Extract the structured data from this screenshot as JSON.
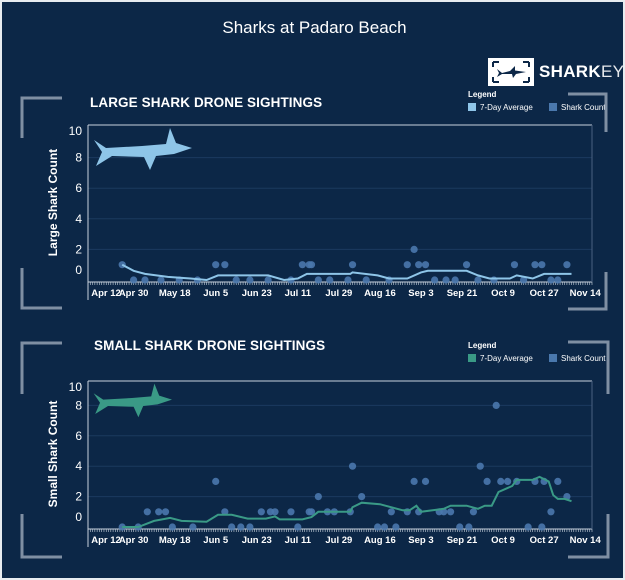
{
  "title": "Sharks at Padaro Beach",
  "logo": {
    "bold": "SHARK",
    "light": "EYE",
    "icon": "shark-eye-logo"
  },
  "colors": {
    "background": "#0c2747",
    "bracket": "#7f8fa3",
    "large_avg": "#8ec5e8",
    "small_avg": "#3a9a86",
    "dot": "#4a78ad"
  },
  "chart_data": [
    {
      "type": "line",
      "title": "LARGE SHARK DRONE SIGHTINGS",
      "ylabel": "Large Shark Count",
      "xlabel": "",
      "ylim": [
        0,
        10
      ],
      "yticks": [
        0,
        2,
        4,
        6,
        8,
        10
      ],
      "xticks": [
        "Apr 12",
        "Apr 30",
        "May 18",
        "Jun 5",
        "Jun 23",
        "Jul 11",
        "Jul 29",
        "Aug 16",
        "Sep 3",
        "Sep 21",
        "Oct 9",
        "Oct 27",
        "Nov 14"
      ],
      "grid": true,
      "legend": {
        "title": "Legend",
        "position": "top-right",
        "items": [
          "7-Day Average",
          "Shark Count"
        ]
      },
      "series": [
        {
          "name": "7-Day Average",
          "type": "line",
          "points": [
            [
              "04-25",
              1
            ],
            [
              "04-30",
              0.6
            ],
            [
              "05-05",
              0.4
            ],
            [
              "05-15",
              0.2
            ],
            [
              "05-25",
              0.1
            ],
            [
              "06-01",
              0
            ],
            [
              "06-06",
              0.3
            ],
            [
              "06-20",
              0.3
            ],
            [
              "06-28",
              0.3
            ],
            [
              "07-05",
              0
            ],
            [
              "07-11",
              0.1
            ],
            [
              "07-15",
              0.4
            ],
            [
              "08-03",
              0.4
            ],
            [
              "08-04",
              0.5
            ],
            [
              "08-15",
              0.3
            ],
            [
              "08-20",
              0.1
            ],
            [
              "08-28",
              0.1
            ],
            [
              "09-03",
              0.5
            ],
            [
              "09-06",
              0.6
            ],
            [
              "09-23",
              0.6
            ],
            [
              "09-28",
              0.3
            ],
            [
              "10-03",
              0.1
            ],
            [
              "10-12",
              0.1
            ],
            [
              "10-15",
              0.3
            ],
            [
              "10-22",
              0.1
            ],
            [
              "10-27",
              0.4
            ],
            [
              "11-08",
              0.4
            ]
          ]
        },
        {
          "name": "Shark Count",
          "type": "scatter",
          "points": [
            [
              "04-25",
              1
            ],
            [
              "06-05",
              1
            ],
            [
              "06-09",
              1
            ],
            [
              "07-13",
              1
            ],
            [
              "07-16",
              1
            ],
            [
              "07-17",
              1
            ],
            [
              "08-04",
              1
            ],
            [
              "08-28",
              1
            ],
            [
              "08-31",
              2
            ],
            [
              "09-02",
              1
            ],
            [
              "09-05",
              1
            ],
            [
              "09-23",
              1
            ],
            [
              "10-14",
              1
            ],
            [
              "10-23",
              1
            ],
            [
              "10-26",
              1
            ],
            [
              "11-06",
              1
            ],
            [
              "04-30",
              0
            ],
            [
              "05-05",
              0
            ],
            [
              "05-12",
              0
            ],
            [
              "05-20",
              0
            ],
            [
              "05-28",
              0
            ],
            [
              "06-14",
              0
            ],
            [
              "06-20",
              0
            ],
            [
              "06-28",
              0
            ],
            [
              "07-08",
              0
            ],
            [
              "07-20",
              0
            ],
            [
              "07-25",
              0
            ],
            [
              "08-02",
              0
            ],
            [
              "08-10",
              0
            ],
            [
              "08-20",
              0
            ],
            [
              "09-09",
              0
            ],
            [
              "09-14",
              0
            ],
            [
              "09-18",
              0
            ],
            [
              "09-28",
              0
            ],
            [
              "10-05",
              0
            ],
            [
              "10-18",
              0
            ],
            [
              "10-30",
              0
            ],
            [
              "11-02",
              0
            ]
          ]
        }
      ]
    },
    {
      "type": "line",
      "title": "SMALL SHARK DRONE SIGHTINGS",
      "ylabel": "Small Shark Count",
      "xlabel": "",
      "ylim": [
        0,
        10
      ],
      "yticks": [
        0,
        2,
        4,
        6,
        8,
        10
      ],
      "xticks": [
        "Apr 12",
        "Apr 30",
        "May 18",
        "Jun 5",
        "Jun 23",
        "Jul 11",
        "Jul 29",
        "Aug 16",
        "Sep 3",
        "Sep 21",
        "Oct 9",
        "Oct 27",
        "Nov 14"
      ],
      "grid": true,
      "legend": {
        "title": "Legend",
        "position": "top-right",
        "items": [
          "7-Day Average",
          "Shark Count"
        ]
      },
      "series": [
        {
          "name": "7-Day Average",
          "type": "line",
          "points": [
            [
              "04-25",
              0
            ],
            [
              "05-02",
              0
            ],
            [
              "05-09",
              0.4
            ],
            [
              "05-16",
              0.6
            ],
            [
              "05-21",
              0.4
            ],
            [
              "06-01",
              0.35
            ],
            [
              "06-06",
              0.8
            ],
            [
              "06-12",
              0.8
            ],
            [
              "06-19",
              0.55
            ],
            [
              "06-27",
              0.55
            ],
            [
              "07-01",
              0.7
            ],
            [
              "07-03",
              0.5
            ],
            [
              "07-13",
              0.5
            ],
            [
              "07-17",
              0.65
            ],
            [
              "07-20",
              1
            ],
            [
              "08-03",
              1
            ],
            [
              "08-04",
              1.3
            ],
            [
              "08-08",
              1.6
            ],
            [
              "08-16",
              1.5
            ],
            [
              "08-26",
              1.1
            ],
            [
              "08-29",
              1.1
            ],
            [
              "09-01",
              1.4
            ],
            [
              "09-03",
              1.0
            ],
            [
              "09-13",
              1.2
            ],
            [
              "09-16",
              1.4
            ],
            [
              "09-23",
              1.4
            ],
            [
              "09-28",
              1.2
            ],
            [
              "10-01",
              1.4
            ],
            [
              "10-04",
              1.4
            ],
            [
              "10-07",
              2.3
            ],
            [
              "10-13",
              2.7
            ],
            [
              "10-15",
              3.1
            ],
            [
              "10-22",
              3.1
            ],
            [
              "10-25",
              3.3
            ],
            [
              "10-29",
              3.0
            ],
            [
              "10-31",
              2.1
            ],
            [
              "11-02",
              1.85
            ],
            [
              "11-05",
              1.85
            ],
            [
              "11-08",
              1.7
            ]
          ]
        },
        {
          "name": "Shark Count",
          "type": "scatter",
          "points": [
            [
              "05-06",
              1
            ],
            [
              "05-11",
              1
            ],
            [
              "05-14",
              1
            ],
            [
              "06-05",
              3
            ],
            [
              "06-09",
              1
            ],
            [
              "06-25",
              1
            ],
            [
              "06-29",
              1
            ],
            [
              "07-01",
              1
            ],
            [
              "07-08",
              1
            ],
            [
              "07-16",
              1
            ],
            [
              "07-17",
              1
            ],
            [
              "07-20",
              2
            ],
            [
              "07-24",
              1
            ],
            [
              "07-27",
              1
            ],
            [
              "08-03",
              1
            ],
            [
              "08-04",
              4
            ],
            [
              "08-08",
              2
            ],
            [
              "08-21",
              1
            ],
            [
              "08-28",
              1
            ],
            [
              "08-31",
              3
            ],
            [
              "09-02",
              1
            ],
            [
              "09-05",
              3
            ],
            [
              "09-11",
              1
            ],
            [
              "09-13",
              1
            ],
            [
              "09-16",
              1
            ],
            [
              "09-26",
              1
            ],
            [
              "09-29",
              4
            ],
            [
              "10-02",
              3
            ],
            [
              "10-06",
              8
            ],
            [
              "10-08",
              3
            ],
            [
              "10-11",
              3
            ],
            [
              "10-15",
              3
            ],
            [
              "10-23",
              3
            ],
            [
              "10-27",
              3
            ],
            [
              "10-30",
              1
            ],
            [
              "11-02",
              3
            ],
            [
              "11-06",
              2
            ],
            [
              "04-25",
              0
            ],
            [
              "05-02",
              0
            ],
            [
              "05-17",
              0
            ],
            [
              "05-26",
              0
            ],
            [
              "06-12",
              0
            ],
            [
              "06-16",
              0
            ],
            [
              "06-20",
              0
            ],
            [
              "07-11",
              0
            ],
            [
              "08-15",
              0
            ],
            [
              "08-18",
              0
            ],
            [
              "08-23",
              0
            ],
            [
              "09-20",
              0
            ],
            [
              "09-24",
              0
            ],
            [
              "10-20",
              0
            ],
            [
              "10-26",
              0
            ]
          ]
        }
      ]
    }
  ]
}
